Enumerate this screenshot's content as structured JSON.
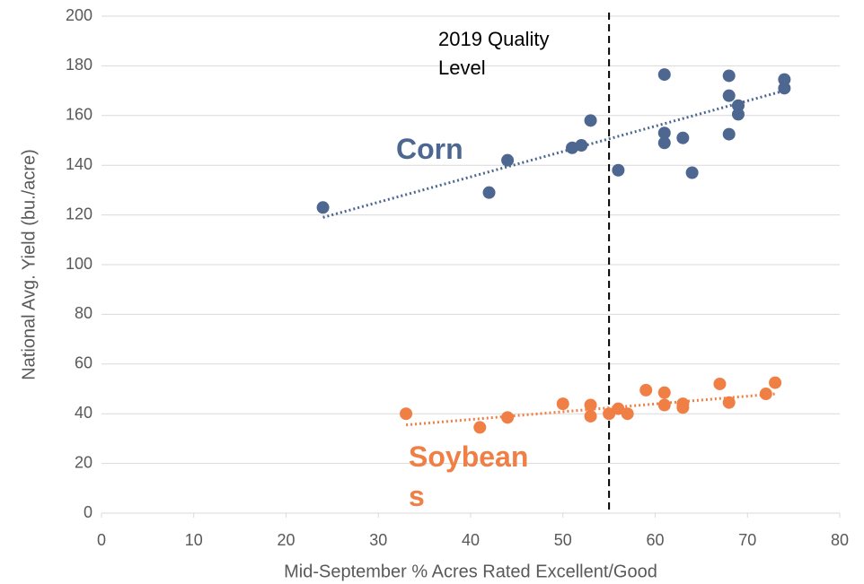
{
  "chart_data": {
    "type": "scatter",
    "x_label": "Mid-September % Acres Rated Excellent/Good",
    "y_label": "National Avg. Yield (bu./acre)",
    "xlim": [
      0,
      80
    ],
    "xticks": [
      0,
      10,
      20,
      30,
      40,
      50,
      60,
      70,
      80
    ],
    "ylim": [
      0,
      200
    ],
    "yticks": [
      0,
      20,
      40,
      60,
      80,
      100,
      120,
      140,
      160,
      180,
      200
    ],
    "grid": true,
    "annotation": {
      "text": "2019 Quality Level",
      "x": 55
    },
    "series": [
      {
        "name": "Corn",
        "color": "#4d6790",
        "x": [
          24,
          42,
          44,
          51,
          52,
          53,
          56,
          61,
          61,
          61,
          63,
          64,
          68,
          68,
          68,
          69,
          69,
          74,
          74
        ],
        "values": [
          123,
          129,
          142,
          147,
          148,
          158,
          138,
          176.5,
          153,
          149,
          151,
          137,
          176,
          168,
          152.5,
          164,
          160.5,
          174.5,
          171
        ],
        "trendline": {
          "x": [
            24,
            74
          ],
          "values": [
            119,
            170
          ]
        }
      },
      {
        "name": "Soybeans",
        "color": "#f07f45",
        "x": [
          33,
          41,
          44,
          50,
          53,
          53,
          55,
          56,
          57,
          59,
          61,
          61,
          63,
          63,
          67,
          68,
          72,
          73
        ],
        "values": [
          40,
          34.5,
          38.5,
          44,
          43.5,
          39,
          40,
          42,
          40,
          49.5,
          48.5,
          43.5,
          44,
          42.5,
          52,
          44.5,
          48,
          52.5
        ],
        "trendline": {
          "x": [
            33,
            73
          ],
          "values": [
            35.5,
            48
          ]
        }
      }
    ]
  }
}
